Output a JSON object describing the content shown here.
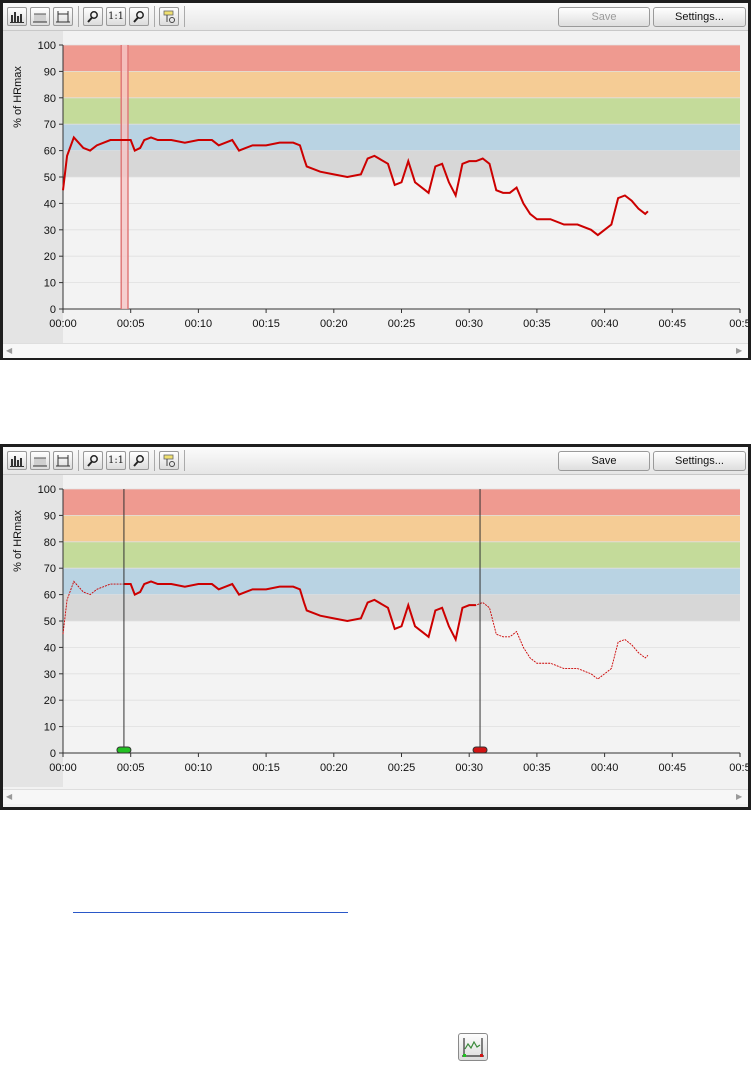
{
  "panels": [
    {
      "save_label": "Save",
      "save_disabled": true,
      "settings_label": "Settings...",
      "zoom_reset_label": "1:1",
      "y_axis_label": "% of HRmax",
      "marker": {
        "type": "selection-band",
        "start": 4.3,
        "end": 4.8
      }
    },
    {
      "save_label": "Save",
      "save_disabled": false,
      "settings_label": "Settings...",
      "zoom_reset_label": "1:1",
      "y_axis_label": "% of HRmax",
      "marker": {
        "type": "range-handles",
        "start": 4.5,
        "end": 30.8,
        "start_color": "#22c022",
        "end_color": "#d21414"
      }
    }
  ],
  "colors": {
    "line": "#cc0000",
    "zone_90_100": "#ef9a90",
    "zone_80_90": "#f5cc95",
    "zone_70_80": "#c4db9a",
    "zone_60_70": "#b9d3e3",
    "zone_50_60": "#d7d7d7"
  },
  "chart_data": {
    "type": "line",
    "ylabel": "% of HRmax",
    "xlabel": "",
    "xlim": [
      0,
      50
    ],
    "ylim": [
      0,
      100
    ],
    "x_tick_labels": [
      "00:00",
      "00:05",
      "00:10",
      "00:15",
      "00:20",
      "00:25",
      "00:30",
      "00:35",
      "00:40",
      "00:45",
      "00:5"
    ],
    "y_tick_labels": [
      "0",
      "10",
      "20",
      "30",
      "40",
      "50",
      "60",
      "70",
      "80",
      "90",
      "100"
    ],
    "zones": [
      [
        90,
        100
      ],
      [
        80,
        90
      ],
      [
        70,
        80
      ],
      [
        60,
        70
      ],
      [
        50,
        60
      ]
    ],
    "series": [
      {
        "x": [
          0,
          0.3,
          0.8,
          1.5,
          2,
          2.5,
          3,
          3.5,
          4,
          4.5,
          5,
          5.3,
          5.7,
          6,
          6.5,
          7,
          8,
          9,
          10,
          11,
          11.5,
          12,
          12.5,
          13,
          13.5,
          14,
          15,
          16,
          17,
          17.5,
          17.8,
          18,
          18.5,
          19,
          20,
          21,
          22,
          22.5,
          23,
          24,
          24.5,
          25,
          25.5,
          26,
          26.5,
          27,
          27.5,
          28,
          28.5,
          29,
          29.5,
          30,
          30.5,
          31,
          31.5,
          32,
          32.5,
          33,
          33.5,
          34,
          34.5,
          35,
          36,
          37,
          38,
          39,
          39.5,
          40,
          40.5,
          41,
          41.5,
          42,
          42.5,
          43,
          43.2
        ],
        "y": [
          45,
          58,
          65,
          61,
          60,
          62,
          63,
          64,
          64,
          64,
          64,
          60,
          61,
          64,
          65,
          64,
          64,
          63,
          64,
          64,
          62,
          63,
          64,
          60,
          61,
          62,
          62,
          63,
          63,
          62,
          57,
          54,
          53,
          52,
          51,
          50,
          51,
          57,
          58,
          55,
          47,
          48,
          56,
          48,
          46,
          44,
          54,
          55,
          48,
          43,
          55,
          56,
          56,
          57,
          55,
          45,
          44,
          44,
          46,
          40,
          36,
          34,
          34,
          32,
          32,
          30,
          28,
          30,
          32,
          42,
          43,
          41,
          38,
          36,
          37
        ]
      }
    ]
  }
}
